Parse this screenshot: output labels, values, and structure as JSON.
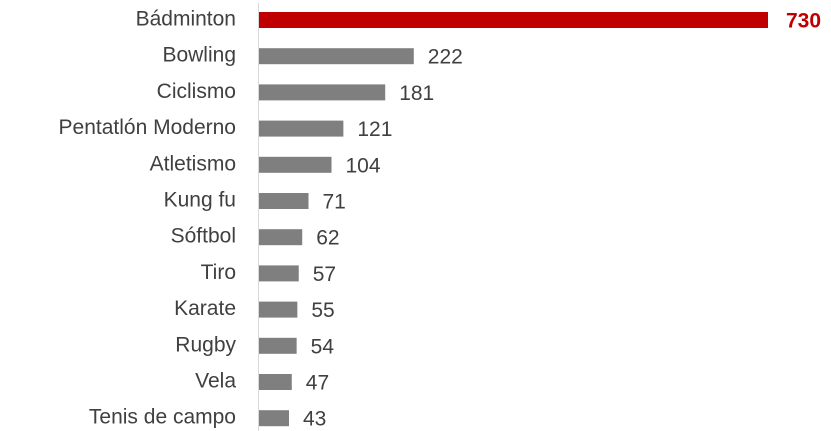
{
  "chart_data": {
    "type": "hbar",
    "categories": [
      "Bádminton",
      "Bowling",
      "Ciclismo",
      "Pentatlón Moderno",
      "Atletismo",
      "Kung fu",
      "Sóftbol",
      "Tiro",
      "Karate",
      "Rugby",
      "Vela",
      "Tenis de campo"
    ],
    "values": [
      730,
      222,
      181,
      121,
      104,
      71,
      62,
      57,
      55,
      54,
      47,
      43
    ],
    "colors": [
      "#c00000",
      "#7f7f7f",
      "#7f7f7f",
      "#7f7f7f",
      "#7f7f7f",
      "#7f7f7f",
      "#7f7f7f",
      "#7f7f7f",
      "#7f7f7f",
      "#7f7f7f",
      "#7f7f7f",
      "#7f7f7f"
    ],
    "highlight": 0
  }
}
